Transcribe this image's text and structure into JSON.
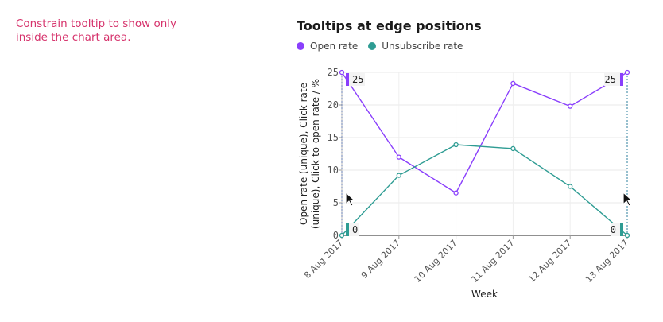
{
  "note": "Constrain tooltip to show only inside the chart area.",
  "colors": {
    "open": "#8a3ffc",
    "unsubscribe": "#2e9c93",
    "note": "#d6336c"
  },
  "tooltips": {
    "left": {
      "open_value": "25",
      "unsub_value": "0"
    },
    "right": {
      "open_value": "25",
      "unsub_value": "0"
    }
  },
  "chart_data": {
    "type": "line",
    "title": "Tooltips at edge positions",
    "xlabel": "Week",
    "ylabel": [
      "Open rate (unique), Click rate",
      "(unique), Click-to-open rate / %"
    ],
    "categories": [
      "8 Aug 2017",
      "9 Aug 2017",
      "10 Aug 2017",
      "11 Aug 2017",
      "12 Aug 2017",
      "13 Aug 2017"
    ],
    "ylim": [
      0,
      25
    ],
    "yticks": [
      "0",
      "5",
      "10",
      "15",
      "20",
      "25"
    ],
    "grid": true,
    "legend_position": "top-left",
    "series": [
      {
        "name": "Open rate",
        "values": [
          25,
          12,
          6.5,
          23.3,
          19.8,
          25
        ]
      },
      {
        "name": "Unsubscribe rate",
        "values": [
          0,
          9.2,
          13.9,
          13.3,
          7.5,
          0
        ]
      }
    ]
  }
}
